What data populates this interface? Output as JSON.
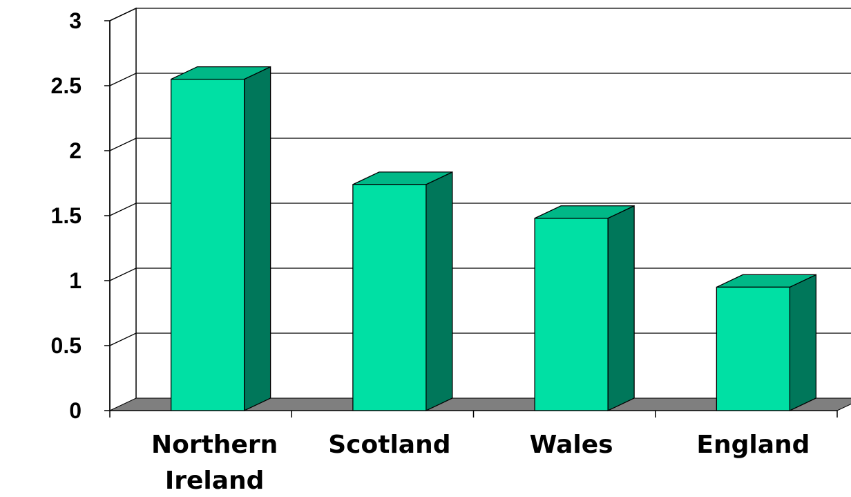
{
  "chart_data": {
    "type": "bar",
    "categories": [
      [
        "Northern",
        "Ireland"
      ],
      [
        "Scotland"
      ],
      [
        "Wales"
      ],
      [
        "England"
      ]
    ],
    "values": [
      2.55,
      1.74,
      1.48,
      0.95
    ],
    "yticks": [
      "0",
      "0.5",
      "1",
      "1.5",
      "2",
      "2.5",
      "3"
    ],
    "ylim": [
      0,
      3
    ],
    "grid": true,
    "legend": "none",
    "three_d": true,
    "colors": {
      "bar_front": "#00E0A4",
      "bar_side": "#00775A",
      "bar_top": "#00B887",
      "floor": "#7F7F7F",
      "grid": "#000000",
      "background": "#FFFFFF"
    }
  }
}
